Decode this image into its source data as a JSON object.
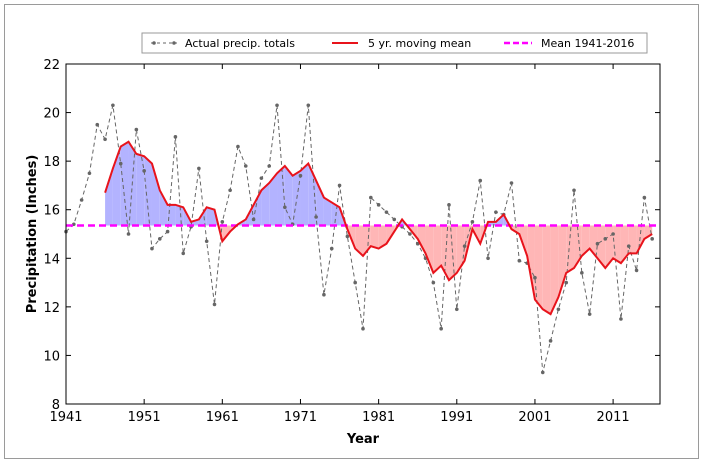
{
  "chart_data": {
    "type": "line",
    "title": "",
    "xlabel": "Year",
    "ylabel": "Precipitation (Inches)",
    "xlim": [
      1941,
      2017
    ],
    "ylim": [
      8,
      22
    ],
    "x_ticks": [
      1941,
      1951,
      1961,
      1971,
      1981,
      1991,
      2001,
      2011
    ],
    "y_ticks": [
      8,
      10,
      12,
      14,
      16,
      18,
      20,
      22
    ],
    "grid": false,
    "legend_position": "top-center",
    "series": [
      {
        "name": "Actual precip. totals",
        "style": "gray dashed line with dot markers",
        "color": "#555555",
        "x": [
          1941,
          1942,
          1943,
          1944,
          1945,
          1946,
          1947,
          1948,
          1949,
          1950,
          1951,
          1952,
          1953,
          1954,
          1955,
          1956,
          1957,
          1958,
          1959,
          1960,
          1961,
          1962,
          1963,
          1964,
          1965,
          1966,
          1967,
          1968,
          1969,
          1970,
          1971,
          1972,
          1973,
          1974,
          1975,
          1976,
          1977,
          1978,
          1979,
          1980,
          1981,
          1982,
          1983,
          1984,
          1985,
          1986,
          1987,
          1988,
          1989,
          1990,
          1991,
          1992,
          1993,
          1994,
          1995,
          1996,
          1997,
          1998,
          1999,
          2000,
          2001,
          2002,
          2003,
          2004,
          2005,
          2006,
          2007,
          2008,
          2009,
          2010,
          2011,
          2012,
          2013,
          2014,
          2015,
          2016
        ],
        "y": [
          15.1,
          15.4,
          16.4,
          17.5,
          19.5,
          18.9,
          20.3,
          17.9,
          15.0,
          19.3,
          17.6,
          14.4,
          14.8,
          15.1,
          19.0,
          14.2,
          15.3,
          17.7,
          14.7,
          12.1,
          15.5,
          16.8,
          18.6,
          17.8,
          15.6,
          17.3,
          17.8,
          20.3,
          16.1,
          15.4,
          17.4,
          20.3,
          15.7,
          12.5,
          14.4,
          17.0,
          14.9,
          13.0,
          11.1,
          16.5,
          16.2,
          15.9,
          15.6,
          15.3,
          15.0,
          14.6,
          14.0,
          13.0,
          11.1,
          16.2,
          11.9,
          14.5,
          15.5,
          17.2,
          14.0,
          15.9,
          15.8,
          17.1,
          13.9,
          13.8,
          13.2,
          9.3,
          10.6,
          11.9,
          13.0,
          16.8,
          13.4,
          11.7,
          14.6,
          14.8,
          15.0,
          11.5,
          14.5,
          13.5,
          16.5,
          14.8
        ]
      },
      {
        "name": "5 yr. moving mean",
        "style": "red solid line",
        "color": "#e8131b",
        "x": [
          1946,
          1947,
          1948,
          1949,
          1950,
          1951,
          1952,
          1953,
          1954,
          1955,
          1956,
          1957,
          1958,
          1959,
          1960,
          1961,
          1962,
          1963,
          1964,
          1965,
          1966,
          1967,
          1968,
          1969,
          1970,
          1971,
          1972,
          1973,
          1974,
          1975,
          1976,
          1977,
          1978,
          1979,
          1980,
          1981,
          1982,
          1983,
          1984,
          1985,
          1986,
          1987,
          1988,
          1989,
          1990,
          1991,
          1992,
          1993,
          1994,
          1995,
          1996,
          1997,
          1998,
          1999,
          2000,
          2001,
          2002,
          2003,
          2004,
          2005,
          2006,
          2007,
          2008,
          2009,
          2010,
          2011,
          2012,
          2013,
          2014,
          2015,
          2016
        ],
        "y": [
          16.7,
          17.7,
          18.6,
          18.8,
          18.3,
          18.2,
          17.9,
          16.8,
          16.2,
          16.2,
          16.1,
          15.5,
          15.6,
          16.1,
          16.0,
          14.7,
          15.1,
          15.4,
          15.6,
          16.2,
          16.8,
          17.1,
          17.5,
          17.8,
          17.4,
          17.6,
          17.9,
          17.2,
          16.5,
          16.3,
          16.1,
          15.2,
          14.4,
          14.1,
          14.5,
          14.4,
          14.6,
          15.1,
          15.6,
          15.2,
          14.8,
          14.2,
          13.4,
          13.7,
          13.1,
          13.4,
          13.9,
          15.2,
          14.6,
          15.5,
          15.5,
          15.8,
          15.2,
          15.0,
          14.1,
          12.3,
          11.9,
          11.7,
          12.4,
          13.4,
          13.6,
          14.1,
          14.4,
          14.0,
          13.6,
          14.0,
          13.8,
          14.2,
          14.2,
          14.8,
          15.0
        ]
      },
      {
        "name": "Mean 1941-2016",
        "style": "magenta dashed horizontal line",
        "color": "#ff00ff",
        "y": 15.35
      }
    ],
    "fill": {
      "above_mean_color": "#b3b3ff",
      "below_mean_color": "#ffb6b6"
    }
  }
}
